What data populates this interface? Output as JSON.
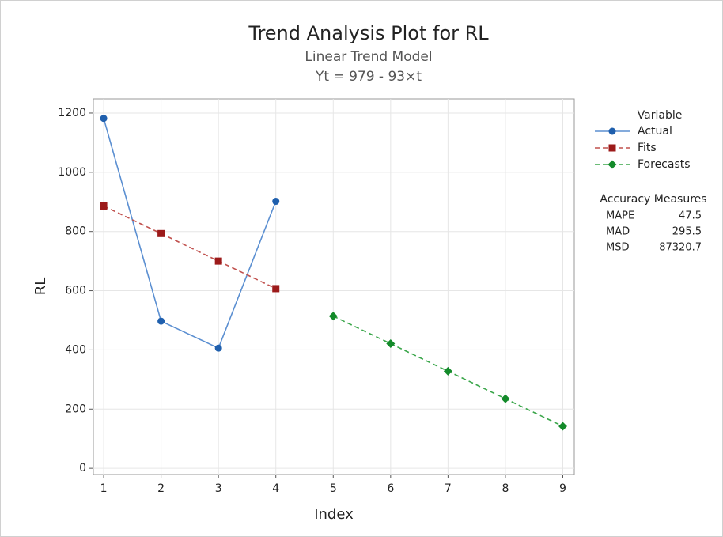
{
  "chart_data": {
    "type": "line",
    "title": "Trend Analysis Plot for RL",
    "subtitle": [
      "Linear Trend Model",
      "Yt = 979 - 93×t"
    ],
    "x_label": "Index",
    "y_label": "RL",
    "xlim": [
      0.82,
      9.2
    ],
    "xticks": [
      1,
      2,
      3,
      4,
      5,
      6,
      7,
      8,
      9
    ],
    "ylim": [
      -21,
      1248
    ],
    "yticks": [
      0,
      200,
      400,
      600,
      800,
      1000,
      1200
    ],
    "grid": true,
    "legend_title": "Variable",
    "series": [
      {
        "name": "Actual",
        "color": "#1f5fad",
        "line_color": "#5b8fd1",
        "marker": "circle",
        "dash": false,
        "x": [
          1,
          2,
          3,
          4
        ],
        "values": [
          1182,
          497,
          406,
          902
        ]
      },
      {
        "name": "Fits",
        "color": "#9c1a1a",
        "line_color": "#c0504d",
        "marker": "square",
        "dash": true,
        "x": [
          1,
          2,
          3,
          4
        ],
        "values": [
          886,
          793,
          700,
          607
        ]
      },
      {
        "name": "Forecasts",
        "color": "#138a2a",
        "line_color": "#3aa64a",
        "marker": "diamond",
        "dash": true,
        "x": [
          5,
          6,
          7,
          8,
          9
        ],
        "values": [
          514,
          421,
          328,
          235,
          142
        ]
      }
    ],
    "accuracy": {
      "title": "Accuracy Measures",
      "rows": [
        {
          "name": "MAPE",
          "value": 47.5
        },
        {
          "name": "MAD",
          "value": 295.5
        },
        {
          "name": "MSD",
          "value": 87320.7
        }
      ]
    }
  }
}
